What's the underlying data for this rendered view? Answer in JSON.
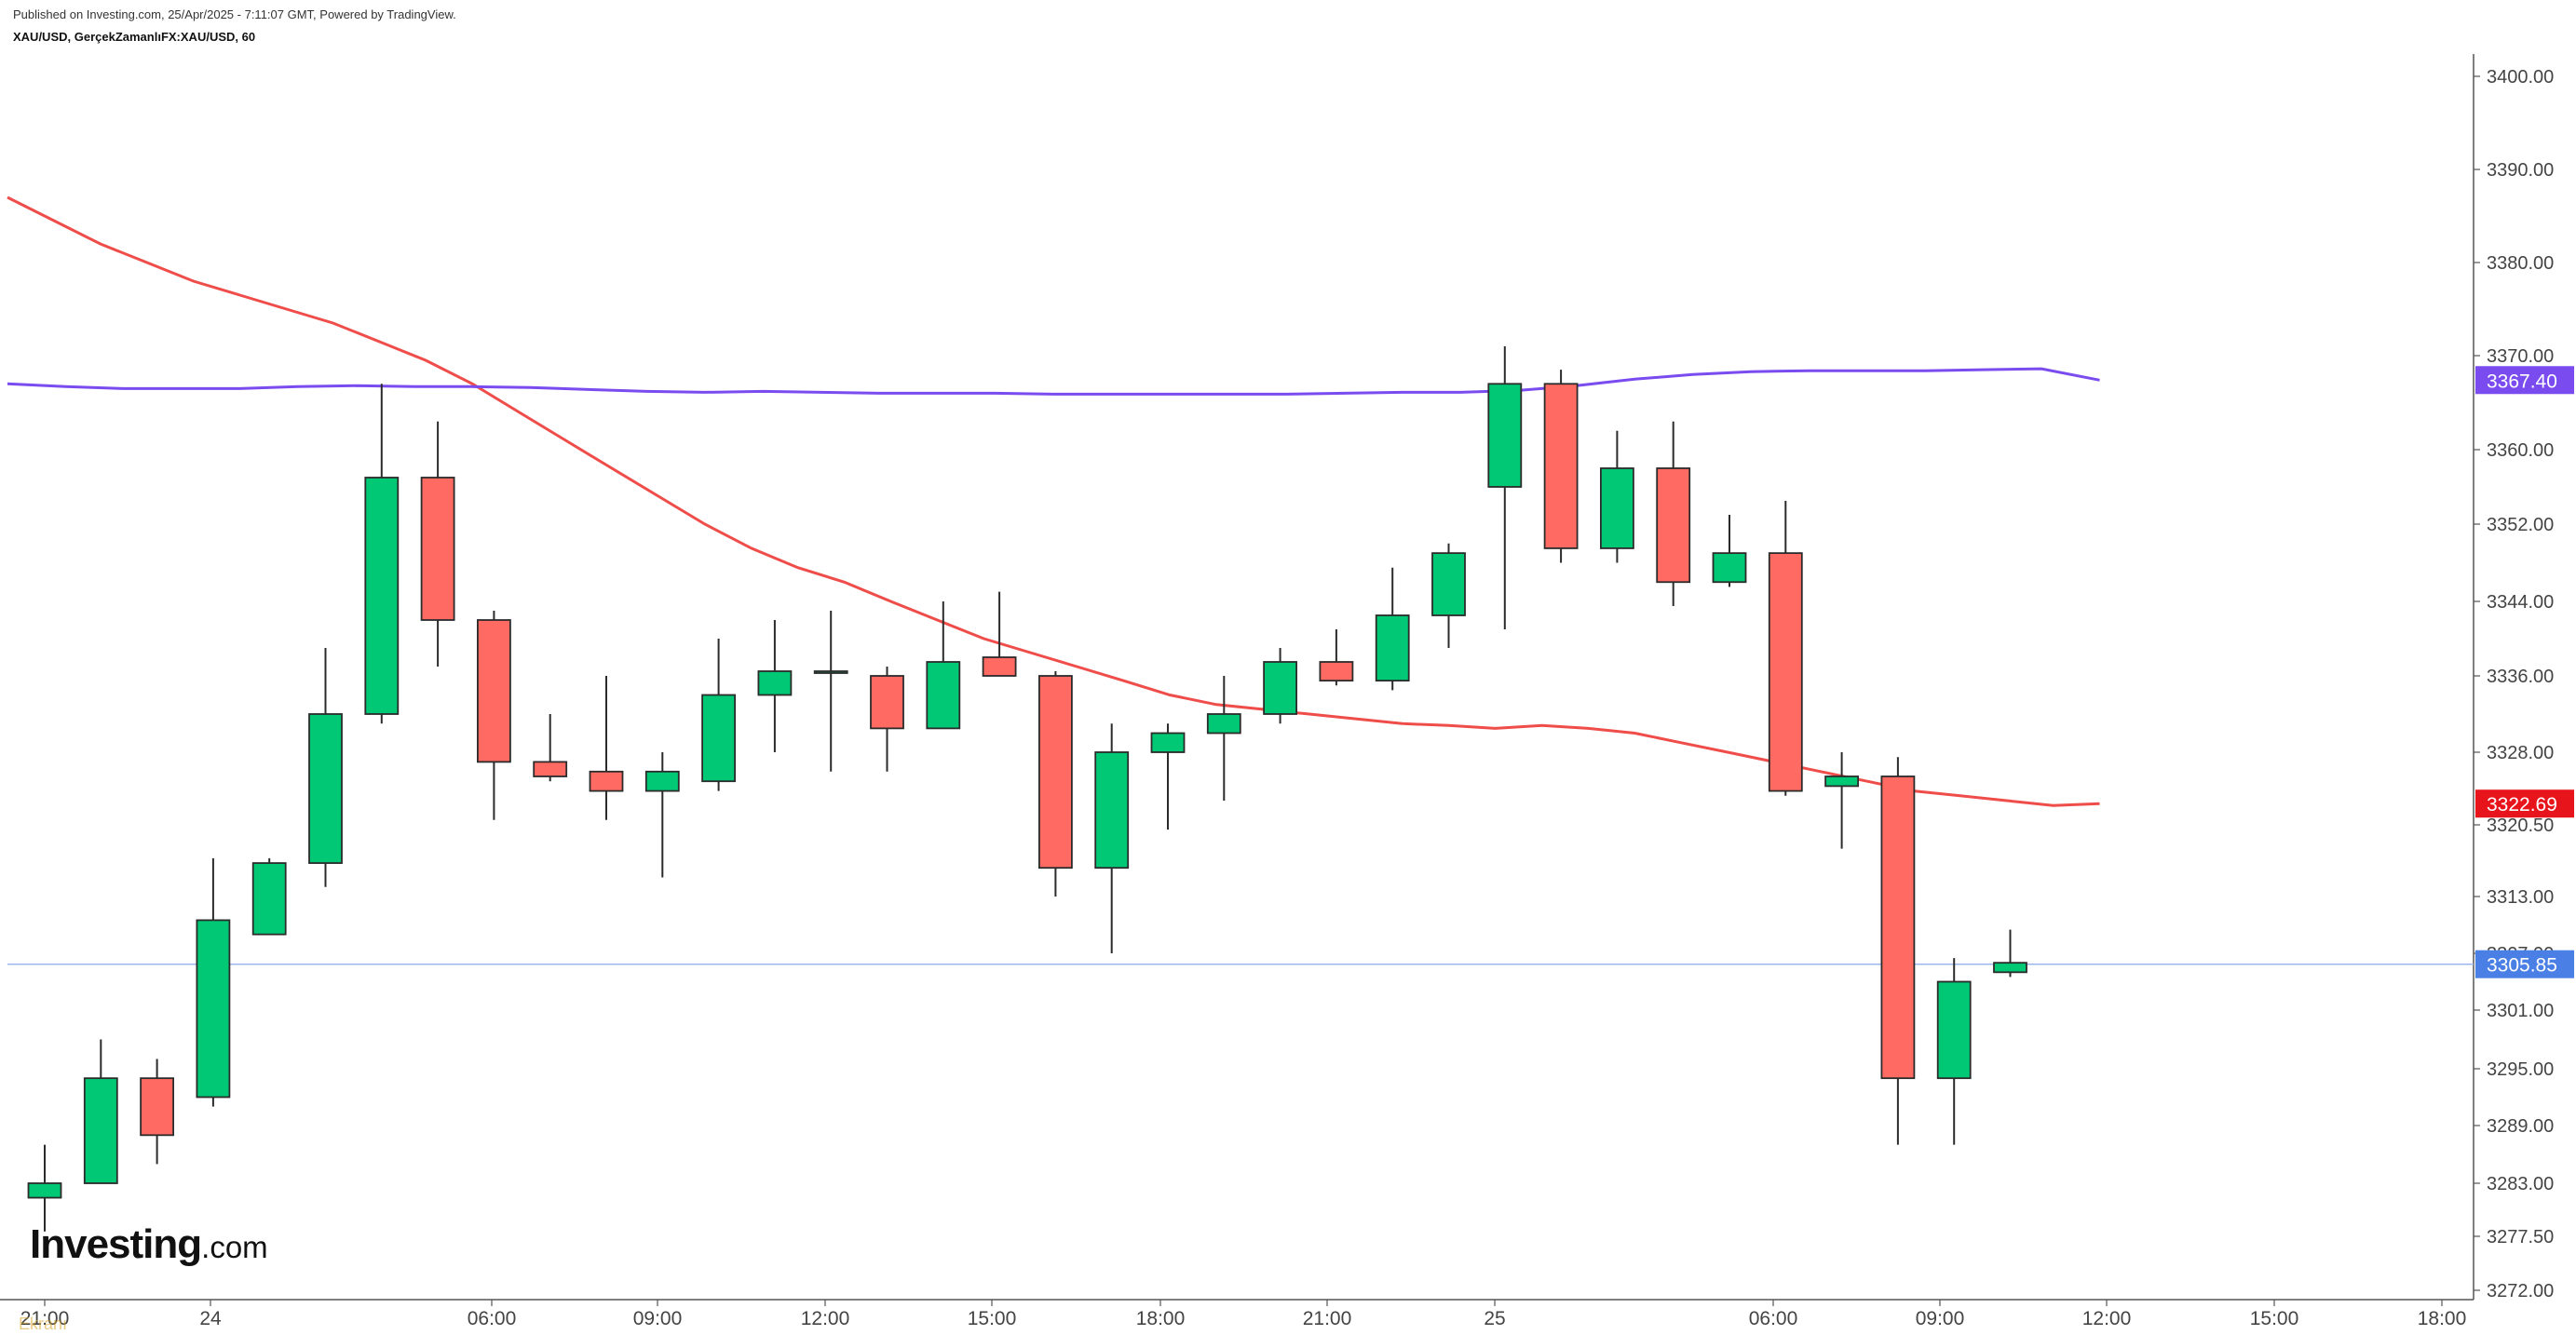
{
  "header": {
    "published": "Published on Investing.com, 25/Apr/2025 - 7:11:07 GMT, Powered by TradingView.",
    "symbol": "XAU/USD, GerçekZamanlıFX:XAU/USD, 60"
  },
  "brand": {
    "bold": "Investing",
    "suffix": ".com"
  },
  "watermark": "Ekranı",
  "colors": {
    "up": "#00c875",
    "down": "#ff6b62",
    "wick": "#2b2b2b",
    "ma_red": "#ef4d4a",
    "ma_purple": "#7a4cf0",
    "last_price": "#4a7fe5",
    "axis": "#555555"
  },
  "chart_data": {
    "type": "candlestick",
    "symbol": "XAU/USD",
    "interval": "60",
    "y_ticks": [
      "3400.00",
      "3390.00",
      "3380.00",
      "3370.00",
      "3360.00",
      "3352.00",
      "3344.00",
      "3336.00",
      "3328.00",
      "3320.50",
      "3313.00",
      "3307.00",
      "3301.00",
      "3295.00",
      "3289.00",
      "3283.00",
      "3277.50",
      "3272.00"
    ],
    "x_ticks": [
      "21:00",
      "24",
      "06:00",
      "09:00",
      "12:00",
      "15:00",
      "18:00",
      "21:00",
      "25",
      "06:00",
      "09:00",
      "12:00",
      "15:00",
      "18:00"
    ],
    "candles": [
      {
        "time": "23 21:00",
        "open": 3281.5,
        "high": 3287.0,
        "low": 3278.0,
        "close": 3283.0
      },
      {
        "time": "23 22:00",
        "open": 3283.0,
        "high": 3298.0,
        "low": 3283.0,
        "close": 3294.0
      },
      {
        "time": "23 23:00",
        "open": 3294.0,
        "high": 3296.0,
        "low": 3285.0,
        "close": 3288.0
      },
      {
        "time": "24 00:00",
        "open": 3292.0,
        "high": 3317.0,
        "low": 3291.0,
        "close": 3310.5
      },
      {
        "time": "24 01:00",
        "open": 3309.0,
        "high": 3317.0,
        "low": 3309.0,
        "close": 3316.5
      },
      {
        "time": "24 02:00",
        "open": 3316.5,
        "high": 3339.0,
        "low": 3314.0,
        "close": 3332.0
      },
      {
        "time": "24 03:00",
        "open": 3332.0,
        "high": 3367.0,
        "low": 3331.0,
        "close": 3357.0
      },
      {
        "time": "24 04:00",
        "open": 3357.0,
        "high": 3363.0,
        "low": 3337.0,
        "close": 3342.0
      },
      {
        "time": "24 05:00",
        "open": 3342.0,
        "high": 3343.0,
        "low": 3321.0,
        "close": 3327.0
      },
      {
        "time": "24 06:00",
        "open": 3327.0,
        "high": 3332.0,
        "low": 3325.0,
        "close": 3325.5
      },
      {
        "time": "24 07:00",
        "open": 3326.0,
        "high": 3336.0,
        "low": 3321.0,
        "close": 3324.0
      },
      {
        "time": "24 08:00",
        "open": 3324.0,
        "high": 3328.0,
        "low": 3315.0,
        "close": 3326.0
      },
      {
        "time": "24 09:00",
        "open": 3325.0,
        "high": 3340.0,
        "low": 3324.0,
        "close": 3334.0
      },
      {
        "time": "24 10:00",
        "open": 3334.0,
        "high": 3342.0,
        "low": 3328.0,
        "close": 3336.5
      },
      {
        "time": "24 11:00",
        "open": 3336.5,
        "high": 3343.0,
        "low": 3326.0,
        "close": 3336.5
      },
      {
        "time": "24 12:00",
        "open": 3336.0,
        "high": 3337.0,
        "low": 3326.0,
        "close": 3330.5
      },
      {
        "time": "24 13:00",
        "open": 3330.5,
        "high": 3344.0,
        "low": 3330.5,
        "close": 3337.5
      },
      {
        "time": "24 14:00",
        "open": 3338.0,
        "high": 3345.0,
        "low": 3336.0,
        "close": 3336.0
      },
      {
        "time": "24 15:00",
        "open": 3336.0,
        "high": 3336.5,
        "low": 3313.0,
        "close": 3316.0
      },
      {
        "time": "24 16:00",
        "open": 3316.0,
        "high": 3331.0,
        "low": 3307.0,
        "close": 3328.0
      },
      {
        "time": "24 17:00",
        "open": 3328.0,
        "high": 3331.0,
        "low": 3320.0,
        "close": 3330.0
      },
      {
        "time": "24 18:00",
        "open": 3330.0,
        "high": 3336.0,
        "low": 3323.0,
        "close": 3332.0
      },
      {
        "time": "24 19:00",
        "open": 3332.0,
        "high": 3339.0,
        "low": 3331.0,
        "close": 3337.5
      },
      {
        "time": "24 20:00",
        "open": 3337.5,
        "high": 3341.0,
        "low": 3335.0,
        "close": 3335.5
      },
      {
        "time": "24 21:00",
        "open": 3335.5,
        "high": 3347.5,
        "low": 3334.5,
        "close": 3342.5
      },
      {
        "time": "24 22:00",
        "open": 3342.5,
        "high": 3350.0,
        "low": 3339.0,
        "close": 3349.0
      },
      {
        "time": "24 23:00",
        "open": 3356.0,
        "high": 3371.0,
        "low": 3341.0,
        "close": 3367.0
      },
      {
        "time": "25 00:00",
        "open": 3367.0,
        "high": 3368.5,
        "low": 3348.0,
        "close": 3349.5
      },
      {
        "time": "25 01:00",
        "open": 3349.5,
        "high": 3362.0,
        "low": 3348.0,
        "close": 3358.0
      },
      {
        "time": "25 02:00",
        "open": 3358.0,
        "high": 3363.0,
        "low": 3343.5,
        "close": 3346.0
      },
      {
        "time": "25 03:00",
        "open": 3346.0,
        "high": 3353.0,
        "low": 3345.5,
        "close": 3349.0
      },
      {
        "time": "25 04:00",
        "open": 3349.0,
        "high": 3354.5,
        "low": 3323.5,
        "close": 3324.0
      },
      {
        "time": "25 05:00",
        "open": 3324.5,
        "high": 3328.0,
        "low": 3318.0,
        "close": 3325.5
      },
      {
        "time": "25 06:00",
        "open": 3325.5,
        "high": 3327.5,
        "low": 3287.0,
        "close": 3294.0
      },
      {
        "time": "25 07:00",
        "open": 3294.0,
        "high": 3306.5,
        "low": 3287.0,
        "close": 3304.0
      },
      {
        "time": "25 08:00",
        "open": 3305.0,
        "high": 3309.5,
        "low": 3304.5,
        "close": 3306.0
      }
    ],
    "ma_red": [
      3387.0,
      3384.5,
      3382.0,
      3380.0,
      3378.0,
      3376.5,
      3375.0,
      3373.5,
      3371.5,
      3369.5,
      3367.0,
      3364.0,
      3361.0,
      3358.0,
      3355.0,
      3352.0,
      3349.5,
      3347.5,
      3346.0,
      3344.0,
      3342.0,
      3340.0,
      3338.5,
      3337.0,
      3335.5,
      3334.0,
      3333.0,
      3332.5,
      3332.0,
      3331.5,
      3331.0,
      3330.8,
      3330.5,
      3330.8,
      3330.5,
      3330.0,
      3329.0,
      3328.0,
      3327.0,
      3326.0,
      3325.0,
      3324.0,
      3323.5,
      3323.0,
      3322.5,
      3322.69
    ],
    "ma_purple": [
      3367.0,
      3366.7,
      3366.5,
      3366.5,
      3366.5,
      3366.7,
      3366.8,
      3366.7,
      3366.7,
      3366.6,
      3366.4,
      3366.2,
      3366.1,
      3366.2,
      3366.1,
      3366.0,
      3366.0,
      3366.0,
      3365.9,
      3365.9,
      3365.9,
      3365.9,
      3365.9,
      3366.0,
      3366.1,
      3366.1,
      3366.3,
      3366.8,
      3367.5,
      3368.0,
      3368.3,
      3368.4,
      3368.4,
      3368.4,
      3368.5,
      3368.6,
      3367.4
    ],
    "ma_red_label": "3322.69",
    "ma_purple_label": "3367.40",
    "last_price_label": "3305.85",
    "last_price": 3305.85
  }
}
